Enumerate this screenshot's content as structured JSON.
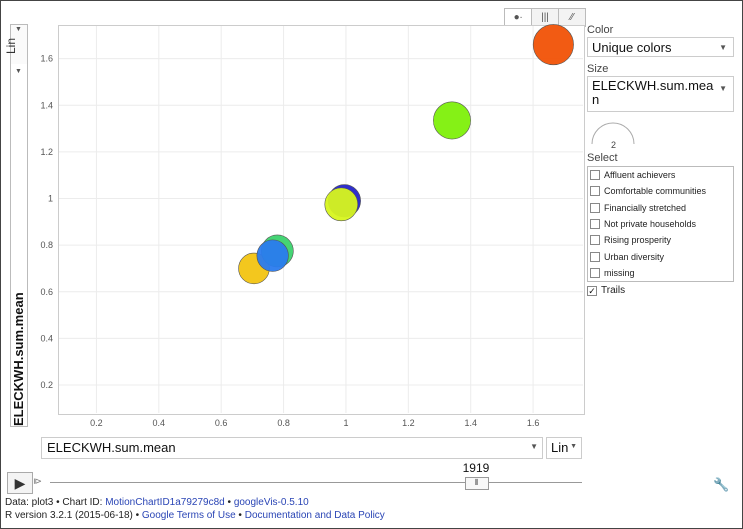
{
  "chart_data": {
    "type": "scatter",
    "x_variable": "ELECKWH.sum.mean",
    "y_variable": "ELECKWH.sum.mean",
    "x_scale": "Lin",
    "y_scale": "Lin",
    "x_ticks": [
      "0.2",
      "0.4",
      "0.6",
      "0.8",
      "1",
      "1.2",
      "1.4",
      "1.6"
    ],
    "y_ticks": [
      "0.2",
      "0.4",
      "0.6",
      "0.8",
      "1",
      "1.2",
      "1.4",
      "1.6"
    ],
    "xlim": [
      0.08,
      1.76
    ],
    "ylim": [
      0.08,
      1.74
    ],
    "grid": true,
    "points": [
      {
        "x": 0.705,
        "y": 0.7,
        "color": "#f2c412",
        "size": 0.45
      },
      {
        "x": 0.78,
        "y": 0.775,
        "color": "#3bd26d",
        "size": 0.5
      },
      {
        "x": 0.765,
        "y": 0.755,
        "color": "#2a7bee",
        "size": 0.48
      },
      {
        "x": 0.995,
        "y": 0.99,
        "color": "#2424c8",
        "size": 0.52
      },
      {
        "x": 0.985,
        "y": 0.975,
        "color": "#d7f51e",
        "size": 0.54
      },
      {
        "x": 1.34,
        "y": 1.335,
        "color": "#7ef00a",
        "size": 0.72
      },
      {
        "x": 1.665,
        "y": 1.66,
        "color": "#f15206",
        "size": 0.85
      }
    ]
  },
  "controls": {
    "view_tabs": [
      "bubble-icon",
      "bar-icon",
      "line-icon"
    ],
    "color_heading": "Color",
    "color_value": "Unique colors",
    "size_heading": "Size",
    "size_value_line1": "ELECKWH.sum.mea",
    "size_value_line2": "n",
    "size_gauge_value": "2",
    "select_heading": "Select",
    "select_items": [
      "Affluent achievers",
      "Comfortable communities",
      "Financially stretched",
      "Not private households",
      "Rising prosperity",
      "Urban diversity",
      "missing"
    ],
    "trails_label": "Trails",
    "trails_checked": true,
    "time_value": "1919",
    "time_fraction": 0.8
  },
  "footer": {
    "line1_prefix": "Data: plot3 • Chart ID: ",
    "chart_id": "MotionChartID1a79279c8d",
    "line1_sep": " • ",
    "gvis": "googleVis-0.5.10",
    "line2_prefix": "R version 3.2.1 (2015-06-18) • ",
    "terms": "Google Terms of Use",
    "line2_sep": " • ",
    "policy": "Documentation and Data Policy"
  }
}
